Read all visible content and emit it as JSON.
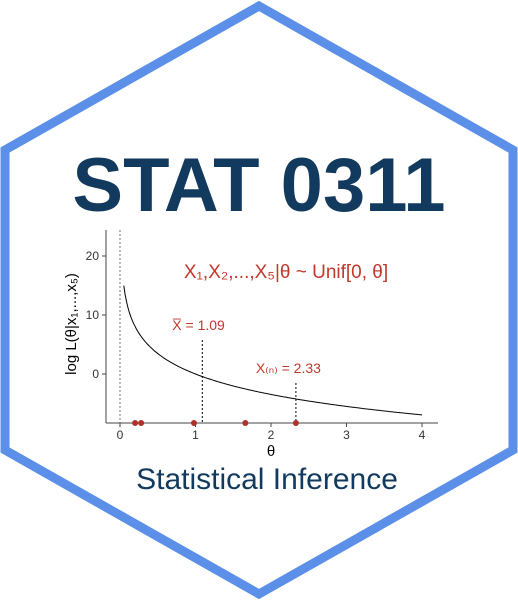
{
  "badge": {
    "title": "STAT 0311",
    "subtitle": "Statistical Inference",
    "colors": {
      "hex_border": "#5b8fe8",
      "title": "#123a5e",
      "subtitle": "#123a5e",
      "annotation": "#c0392b",
      "points": "#b0302a",
      "curve": "#000000",
      "axis": "#444444"
    }
  },
  "chart_data": {
    "type": "line",
    "ylabel": "log L(θ|x₁,...,x₅)",
    "xlabel": "θ",
    "xlim": [
      -0.2,
      4.2
    ],
    "ylim": [
      -7,
      24
    ],
    "x_ticks": [
      0,
      1,
      2,
      3,
      4
    ],
    "y_ticks": [
      0,
      10,
      20
    ],
    "grid": false,
    "model_label": "X₁,X₂,...,X₅|θ ~ Unif[0, θ]",
    "sample_points": [
      0.2,
      0.28,
      0.98,
      1.66,
      2.33
    ],
    "annotations": [
      {
        "label": "X̅ = 1.09",
        "x": 1.09
      },
      {
        "label": "X₍ₙ₎ = 2.33",
        "x": 2.33
      }
    ],
    "curve": {
      "formula": "-5*log(theta)",
      "x_start": 0.05,
      "x_end": 4.0
    }
  }
}
